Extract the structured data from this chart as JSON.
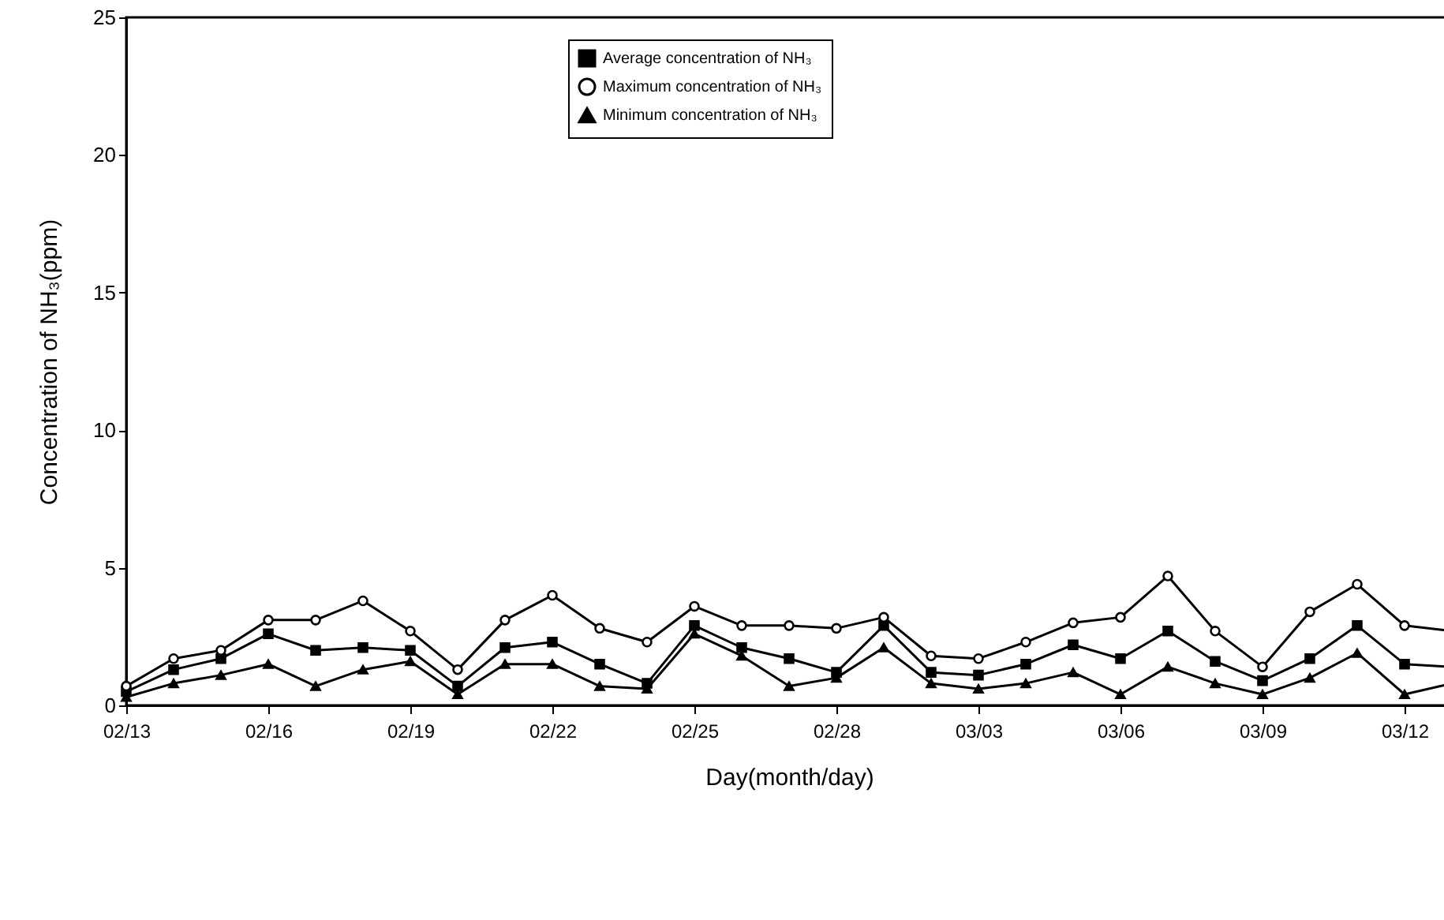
{
  "chart_data": {
    "type": "line",
    "xlabel": "Day(month/day)",
    "ylabel": "Concentration of NH₃(ppm)",
    "x": [
      "--02-13",
      "--02-14",
      "--02-15",
      "--02-16",
      "--02-17",
      "--02-18",
      "--02-19",
      "--02-20",
      "--02-21",
      "--02-22",
      "--02-23",
      "--02-24",
      "--02-25",
      "--02-26",
      "--02-27",
      "--02-28",
      "--03-01",
      "--03-02",
      "--03-03",
      "--03-04",
      "--03-05",
      "--03-06",
      "--03-07",
      "--03-08",
      "--03-09",
      "--03-10",
      "--03-11",
      "--03-12",
      "--03-13"
    ],
    "series": [
      {
        "name": "Average concentration of NH₃",
        "color": "#000000",
        "marker": "square",
        "values": [
          0.5,
          1.3,
          1.7,
          2.6,
          2.0,
          2.1,
          2.0,
          0.7,
          2.1,
          2.3,
          1.5,
          0.8,
          2.9,
          2.1,
          1.7,
          1.2,
          2.9,
          1.2,
          1.1,
          1.5,
          2.2,
          1.7,
          2.7,
          1.6,
          0.9,
          1.7,
          2.9,
          1.5,
          1.4
        ]
      },
      {
        "name": "Maximum concentration of NH₃",
        "color": "#000000",
        "marker": "circle",
        "values": [
          0.7,
          1.7,
          2.0,
          3.1,
          3.1,
          3.8,
          2.7,
          1.3,
          3.1,
          4.0,
          2.8,
          2.3,
          3.6,
          2.9,
          2.9,
          2.8,
          3.2,
          1.8,
          1.7,
          2.3,
          3.0,
          3.2,
          4.7,
          2.7,
          1.4,
          3.4,
          4.4,
          2.9,
          2.7
        ]
      },
      {
        "name": "Minimum concentration of NH₃",
        "color": "#000000",
        "marker": "triangle",
        "values": [
          0.3,
          0.8,
          1.1,
          1.5,
          0.7,
          1.3,
          1.6,
          0.4,
          1.5,
          1.5,
          0.7,
          0.6,
          2.6,
          1.8,
          0.7,
          1.0,
          2.1,
          0.8,
          0.6,
          0.8,
          1.2,
          0.4,
          1.4,
          0.8,
          0.4,
          1.0,
          1.9,
          0.4,
          0.8
        ]
      }
    ],
    "xlim": [
      "--02-13",
      "--03-13"
    ],
    "xticks": [
      {
        "value": "--02-13",
        "label": "02/13"
      },
      {
        "value": "--02-16",
        "label": "02/16"
      },
      {
        "value": "--02-19",
        "label": "02/19"
      },
      {
        "value": "--02-22",
        "label": "02/22"
      },
      {
        "value": "--02-25",
        "label": "02/25"
      },
      {
        "value": "--02-28",
        "label": "02/28"
      },
      {
        "value": "--03-03",
        "label": "03/03"
      },
      {
        "value": "--03-06",
        "label": "03/06"
      },
      {
        "value": "--03-09",
        "label": "03/09"
      },
      {
        "value": "--03-12",
        "label": "03/12"
      }
    ],
    "ylim": [
      0,
      25
    ],
    "yticks": [
      0,
      5,
      10,
      15,
      20,
      25
    ],
    "grid": false,
    "legend": "top",
    "line_style": "solid"
  }
}
